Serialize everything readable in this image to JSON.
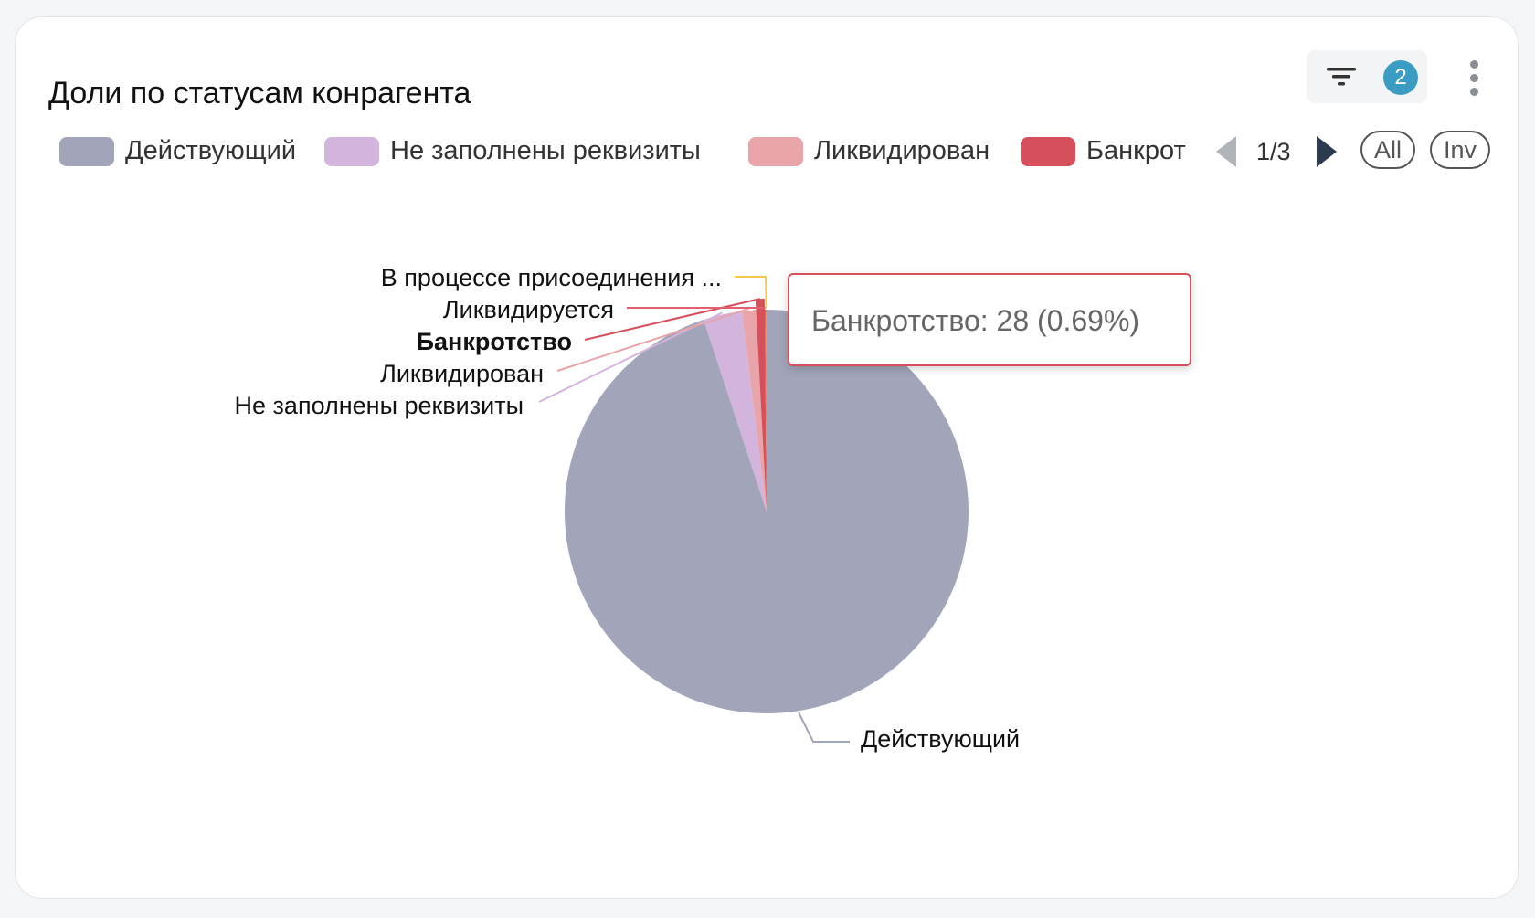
{
  "header": {
    "title": "Доли по статусам конрагента",
    "filter_count": "2",
    "filter_icon": "filter-icon",
    "menu_icon": "more-vertical-icon"
  },
  "legend": {
    "items": [
      {
        "label": "Действующий",
        "color": "#a2a5ba"
      },
      {
        "label": "Не заполнены реквизиты",
        "color": "#d2b4dc"
      },
      {
        "label": "Ликвидирован",
        "color": "#e8a4a9"
      },
      {
        "label": "Банкрот",
        "color": "#d6505c"
      }
    ],
    "page": "1/3",
    "all_label": "All",
    "inv_label": "Inv"
  },
  "tooltip": {
    "text": "Банкротство: 28 (0.69%)"
  },
  "chart_data": {
    "type": "pie",
    "title": "Доли по статусам конрагента",
    "slices": [
      {
        "label": "Действующий",
        "value": 3855,
        "percent": 94.96,
        "color": "#a2a5ba"
      },
      {
        "label": "Не заполнены реквизиты",
        "value": 126,
        "percent": 3.1,
        "color": "#d2b4dc"
      },
      {
        "label": "Ликвидирован",
        "value": 45,
        "percent": 1.11,
        "color": "#e8a4a9"
      },
      {
        "label": "Банкротство",
        "value": 28,
        "percent": 0.69,
        "color": "#d6505c",
        "highlighted": true
      },
      {
        "label": "Ликвидируется",
        "value": 5,
        "percent": 0.12,
        "color": "#e06070"
      },
      {
        "label": "В процессе присоединения ...",
        "value": 1,
        "percent": 0.02,
        "color": "#f2c94c"
      }
    ],
    "legend_position": "top"
  }
}
